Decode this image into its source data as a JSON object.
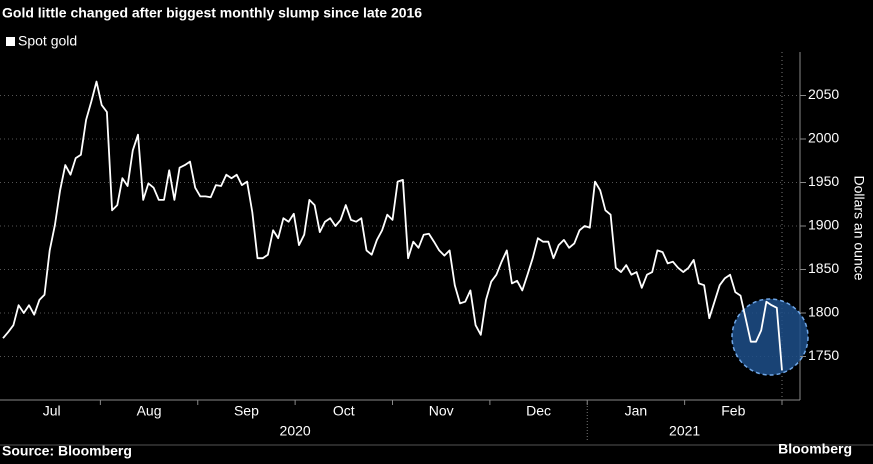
{
  "chart_data": {
    "type": "line",
    "title": "Gold little changed after biggest monthly slump since late 2016",
    "series": [
      {
        "name": "Spot gold",
        "color": "#ffffff",
        "values": [
          1771,
          1778,
          1786,
          1809,
          1800,
          1809,
          1798,
          1815,
          1821,
          1872,
          1901,
          1941,
          1970,
          1959,
          1978,
          1982,
          2022,
          2043,
          2066,
          2039,
          2031,
          1918,
          1924,
          1955,
          1946,
          1987,
          2005,
          1930,
          1949,
          1944,
          1930,
          1930,
          1964,
          1930,
          1967,
          1970,
          1974,
          1944,
          1934,
          1934,
          1933,
          1947,
          1946,
          1959,
          1955,
          1959,
          1947,
          1951,
          1916,
          1863,
          1863,
          1867,
          1895,
          1886,
          1909,
          1905,
          1914,
          1878,
          1890,
          1930,
          1924,
          1893,
          1905,
          1909,
          1900,
          1907,
          1924,
          1907,
          1905,
          1909,
          1872,
          1867,
          1884,
          1895,
          1913,
          1907,
          1951,
          1953,
          1863,
          1882,
          1875,
          1890,
          1891,
          1882,
          1872,
          1866,
          1872,
          1832,
          1811,
          1813,
          1826,
          1786,
          1775,
          1815,
          1836,
          1844,
          1859,
          1872,
          1834,
          1837,
          1826,
          1844,
          1863,
          1886,
          1882,
          1882,
          1863,
          1878,
          1884,
          1875,
          1880,
          1895,
          1900,
          1898,
          1951,
          1941,
          1918,
          1913,
          1852,
          1847,
          1855,
          1844,
          1847,
          1829,
          1844,
          1847,
          1872,
          1870,
          1857,
          1859,
          1852,
          1847,
          1852,
          1861,
          1834,
          1832,
          1794,
          1813,
          1832,
          1840,
          1844,
          1824,
          1820,
          1794,
          1767,
          1767,
          1780,
          1813,
          1809,
          1806,
          1734
        ]
      }
    ],
    "x_axis": [
      {
        "year": "2020",
        "months": [
          "Jul",
          "Aug",
          "Sep",
          "Oct",
          "Nov",
          "Dec"
        ]
      },
      {
        "year": "2021",
        "months": [
          "Jan",
          "Feb"
        ]
      }
    ],
    "ylim": [
      1700,
      2100
    ],
    "yticks": [
      1750,
      1800,
      1850,
      1900,
      1950,
      2000,
      2050
    ],
    "y_label": "Dollars an ounce",
    "grid": true,
    "source": "Source: Bloomberg",
    "brand": "Bloomberg"
  }
}
